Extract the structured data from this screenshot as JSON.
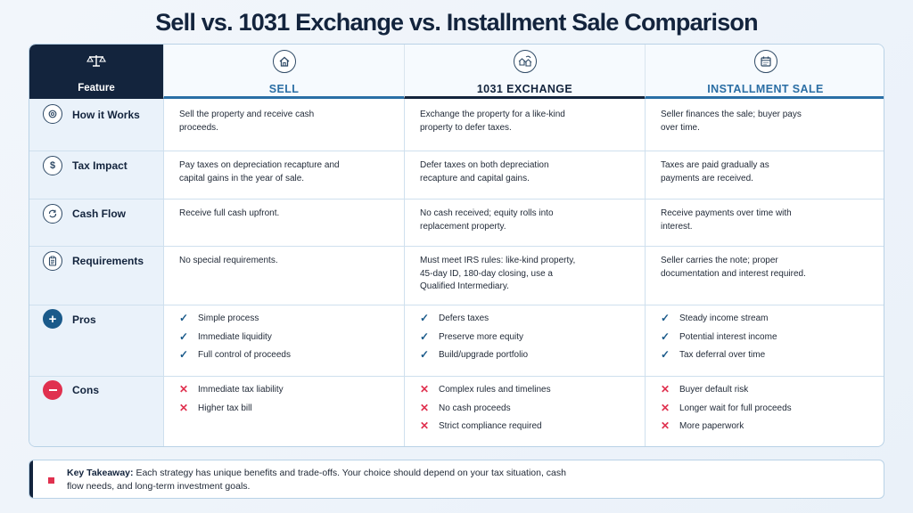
{
  "title": "Sell vs. 1031 Exchange vs. Installment Sale Comparison",
  "header": {
    "feature": "Feature",
    "columns": [
      "SELL",
      "1031 EXCHANGE",
      "INSTALLMENT SALE"
    ]
  },
  "rows": [
    {
      "label": "How it Works",
      "icon": "gear-icon",
      "cells": [
        "Sell the property and receive cash proceeds.",
        "Exchange the property for a like-kind property to defer taxes.",
        "Seller finances the sale; buyer pays over time."
      ]
    },
    {
      "label": "Tax Impact",
      "icon": "dollar-icon",
      "cells": [
        "Pay taxes on depreciation recapture and capital gains in the year of sale.",
        "Defer taxes on both depreciation recapture and capital gains.",
        "Taxes are paid gradually as payments are received."
      ]
    },
    {
      "label": "Cash Flow",
      "icon": "cycle-icon",
      "cells": [
        "Receive full cash upfront.",
        "No cash received; equity rolls into replacement property.",
        "Receive payments over time with interest."
      ]
    },
    {
      "label": "Requirements",
      "icon": "clipboard-icon",
      "cells": [
        "No special requirements.",
        "Must meet IRS rules: like-kind property, 45-day ID, 180-day closing, use a Qualified Intermediary.",
        "Seller carries the note; proper documentation and interest required."
      ]
    }
  ],
  "pros": {
    "label": "Pros",
    "sell": [
      "Simple process",
      "Immediate liquidity",
      "Full control of proceeds"
    ],
    "exchange": [
      "Defers taxes",
      "Preserve more equity",
      "Build/upgrade portfolio"
    ],
    "installment": [
      "Steady income stream",
      "Potential interest income",
      "Tax deferral over time"
    ]
  },
  "cons": {
    "label": "Cons",
    "sell": [
      "Immediate tax liability",
      "Higher tax bill"
    ],
    "exchange": [
      "Complex rules and timelines",
      "No cash proceeds",
      "Strict compliance required"
    ],
    "installment": [
      "Buyer default risk",
      "Longer wait for full proceeds",
      "More paperwork"
    ]
  },
  "takeaway": {
    "label": "Key Takeaway:",
    "text": "Each strategy has unique benefits and trade-offs. Your choice should depend on your tax situation, cash flow needs, and long-term investment goals."
  }
}
